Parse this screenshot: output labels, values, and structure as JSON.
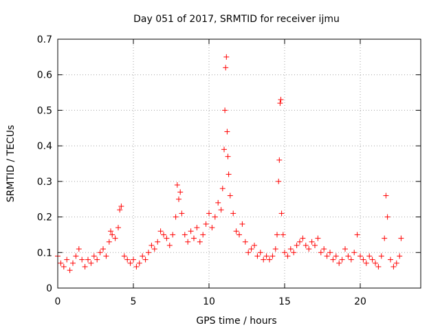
{
  "chart_data": {
    "type": "scatter",
    "title": "Day 051 of 2017, SRMTID for receiver ijmu",
    "xlabel": "GPS time / hours",
    "ylabel": "SRMTID / TECUs",
    "xlim": [
      0,
      24
    ],
    "ylim": [
      0,
      0.7
    ],
    "xticks": [
      "0",
      "5",
      "10",
      "15",
      "20"
    ],
    "yticks": [
      "0",
      "0.1",
      "0.2",
      "0.3",
      "0.4",
      "0.5",
      "0.6",
      "0.7"
    ],
    "grid": true,
    "marker": "+",
    "series": [
      {
        "name": "SRMTID",
        "color": "#ff0000",
        "x": [
          0.0,
          0.2,
          0.4,
          0.6,
          0.8,
          1.0,
          1.2,
          1.4,
          1.6,
          1.8,
          2.0,
          2.2,
          2.4,
          2.6,
          2.8,
          3.0,
          3.2,
          3.4,
          3.5,
          3.6,
          3.8,
          4.0,
          4.1,
          4.2,
          4.4,
          4.6,
          4.8,
          5.0,
          5.2,
          5.4,
          5.6,
          5.8,
          6.0,
          6.2,
          6.4,
          6.6,
          6.8,
          7.0,
          7.2,
          7.4,
          7.6,
          7.8,
          7.9,
          8.0,
          8.1,
          8.2,
          8.4,
          8.6,
          8.8,
          9.0,
          9.2,
          9.4,
          9.6,
          9.8,
          10.0,
          10.2,
          10.4,
          10.6,
          10.8,
          10.9,
          11.0,
          11.05,
          11.1,
          11.15,
          11.2,
          11.25,
          11.3,
          11.4,
          11.6,
          11.8,
          12.0,
          12.2,
          12.4,
          12.6,
          12.8,
          13.0,
          13.2,
          13.4,
          13.6,
          13.8,
          14.0,
          14.2,
          14.4,
          14.5,
          14.6,
          14.65,
          14.7,
          14.75,
          14.8,
          14.9,
          15.0,
          15.2,
          15.4,
          15.6,
          15.8,
          16.0,
          16.2,
          16.4,
          16.6,
          16.8,
          17.0,
          17.2,
          17.4,
          17.6,
          17.8,
          18.0,
          18.2,
          18.4,
          18.6,
          18.8,
          19.0,
          19.2,
          19.4,
          19.6,
          19.8,
          20.0,
          20.2,
          20.4,
          20.6,
          20.8,
          21.0,
          21.2,
          21.4,
          21.6,
          21.7,
          21.8,
          22.0,
          22.2,
          22.4,
          22.6,
          22.7
        ],
        "y": [
          0.09,
          0.07,
          0.06,
          0.08,
          0.05,
          0.07,
          0.09,
          0.11,
          0.08,
          0.06,
          0.08,
          0.07,
          0.09,
          0.08,
          0.1,
          0.11,
          0.09,
          0.13,
          0.16,
          0.15,
          0.14,
          0.17,
          0.22,
          0.23,
          0.09,
          0.08,
          0.07,
          0.08,
          0.06,
          0.07,
          0.09,
          0.08,
          0.1,
          0.12,
          0.11,
          0.13,
          0.16,
          0.15,
          0.14,
          0.12,
          0.15,
          0.2,
          0.29,
          0.25,
          0.27,
          0.21,
          0.15,
          0.13,
          0.16,
          0.14,
          0.17,
          0.13,
          0.15,
          0.18,
          0.21,
          0.17,
          0.2,
          0.24,
          0.22,
          0.28,
          0.39,
          0.5,
          0.62,
          0.65,
          0.44,
          0.37,
          0.32,
          0.26,
          0.21,
          0.16,
          0.15,
          0.18,
          0.13,
          0.1,
          0.11,
          0.12,
          0.09,
          0.1,
          0.08,
          0.09,
          0.08,
          0.09,
          0.11,
          0.15,
          0.3,
          0.36,
          0.52,
          0.53,
          0.21,
          0.15,
          0.1,
          0.09,
          0.11,
          0.1,
          0.12,
          0.13,
          0.14,
          0.12,
          0.11,
          0.13,
          0.12,
          0.14,
          0.1,
          0.11,
          0.09,
          0.1,
          0.08,
          0.09,
          0.07,
          0.08,
          0.11,
          0.09,
          0.08,
          0.1,
          0.15,
          0.09,
          0.08,
          0.07,
          0.09,
          0.08,
          0.07,
          0.06,
          0.09,
          0.14,
          0.26,
          0.2,
          0.08,
          0.06,
          0.07,
          0.09,
          0.14
        ]
      }
    ]
  }
}
